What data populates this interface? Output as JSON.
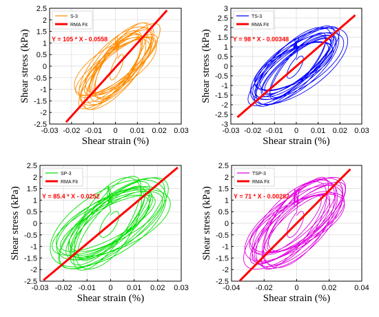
{
  "chart_data": [
    {
      "type": "line",
      "xlabel": "Shear strain (%)",
      "ylabel": "Shear stress (kPa)",
      "xlim": [
        -0.03,
        0.03
      ],
      "ylim": [
        -2.5,
        2.5
      ],
      "xticks": [
        -0.03,
        -0.02,
        -0.01,
        0,
        0.01,
        0.02,
        0.03
      ],
      "yticks": [
        -2.5,
        -2,
        -1.5,
        -1,
        -0.5,
        0,
        0.5,
        1,
        1.5,
        2,
        2.5
      ],
      "xtick_labels": [
        "-0.03",
        "-0.02",
        "-0.01",
        "0",
        "0.01",
        "0.02",
        "0.03"
      ],
      "ytick_labels": [
        "-2.5",
        "-2",
        "-1.5",
        "-1",
        "-0.5",
        "0",
        "0.5",
        "1",
        "1.5",
        "2",
        "2.5"
      ],
      "grid": true,
      "legend": "top-left",
      "annotation": "Y = 105 * X - 0.0558",
      "series": [
        {
          "name": "S-3",
          "color": "#ff8c00",
          "kind": "hysteresis",
          "loop": {
            "center_x": 0.001,
            "center_y": 0.0,
            "x_amplitude": 0.018,
            "y_amplitude": 1.9,
            "phase_lag": 0.7
          }
        },
        {
          "name": "RMA Fit",
          "color": "#ff0000",
          "kind": "fit",
          "slope": 105,
          "intercept": -0.0558,
          "x_range": [
            -0.0225,
            0.0235
          ]
        }
      ]
    },
    {
      "type": "line",
      "xlabel": "Shear strain (%)",
      "ylabel": "Shear stress (kPa)",
      "xlim": [
        -0.03,
        0.03
      ],
      "ylim": [
        -3,
        3
      ],
      "xticks": [
        -0.03,
        -0.02,
        -0.01,
        0,
        0.01,
        0.02,
        0.03
      ],
      "yticks": [
        -3,
        -2.5,
        -2,
        -1.5,
        -1,
        -0.5,
        0,
        0.5,
        1,
        1.5,
        2,
        2.5,
        3
      ],
      "xtick_labels": [
        "-0.03",
        "-0.02",
        "-0.01",
        "0",
        "0.01",
        "0.02",
        "0.03"
      ],
      "ytick_labels": [
        "-3",
        "-2.5",
        "-2",
        "-1.5",
        "-1",
        "-0.5",
        "0",
        "0.5",
        "1",
        "1.5",
        "2",
        "2.5",
        "3"
      ],
      "grid": true,
      "legend": "top-left",
      "annotation": "Y = 98 * X - 0.00348",
      "series": [
        {
          "name": "TS-3",
          "color": "#0000ff",
          "kind": "hysteresis",
          "loop": {
            "center_x": 0.0,
            "center_y": 0.0,
            "x_amplitude": 0.022,
            "y_amplitude": 2.0,
            "phase_lag": 0.7
          }
        },
        {
          "name": "RMA Fit",
          "color": "#ff0000",
          "kind": "fit",
          "slope": 98,
          "intercept": -0.00348,
          "x_range": [
            -0.027,
            0.027
          ]
        }
      ]
    },
    {
      "type": "line",
      "xlabel": "Shear strain (%)",
      "ylabel": "Shear stress (kPa)",
      "xlim": [
        -0.03,
        0.03
      ],
      "ylim": [
        -2.5,
        2.5
      ],
      "xticks": [
        -0.03,
        -0.02,
        -0.01,
        0,
        0.01,
        0.02,
        0.03
      ],
      "yticks": [
        -2.5,
        -2,
        -1.5,
        -1,
        -0.5,
        0,
        0.5,
        1,
        1.5,
        2,
        2.5
      ],
      "xtick_labels": [
        "-0.03",
        "-0.02",
        "-0.01",
        "0",
        "0.01",
        "0.02",
        "0.03"
      ],
      "ytick_labels": [
        "-2.5",
        "-2",
        "-1.5",
        "-1",
        "-0.5",
        "0",
        "0.5",
        "1",
        "1.5",
        "2",
        "2.5"
      ],
      "grid": true,
      "legend": "top-left",
      "annotation": "Y = 85.4 * X - 0.0252",
      "series": [
        {
          "name": "SP-3",
          "color": "#00e000",
          "kind": "hysteresis",
          "loop": {
            "center_x": 0.0,
            "center_y": 0.0,
            "x_amplitude": 0.024,
            "y_amplitude": 1.95,
            "phase_lag": 0.8
          }
        },
        {
          "name": "RMA Fit",
          "color": "#ff0000",
          "kind": "fit",
          "slope": 85.4,
          "intercept": -0.0252,
          "x_range": [
            -0.0285,
            0.0285
          ]
        }
      ]
    },
    {
      "type": "line",
      "xlabel": "Shear strain (%)",
      "ylabel": "Shear stress (kPa)",
      "xlim": [
        -0.04,
        0.04
      ],
      "ylim": [
        -2.5,
        2.5
      ],
      "xticks": [
        -0.04,
        -0.02,
        0,
        0.02,
        0.04
      ],
      "yticks": [
        -2.5,
        -2,
        -1.5,
        -1,
        -0.5,
        0,
        0.5,
        1,
        1.5,
        2,
        2.5
      ],
      "xtick_labels": [
        "-0.04",
        "-0.02",
        "0",
        "0.02",
        "0.04"
      ],
      "ytick_labels": [
        "-2.5",
        "-2",
        "-1.5",
        "-1",
        "-0.5",
        "0",
        "0.5",
        "1",
        "1.5",
        "2",
        "2.5"
      ],
      "grid": true,
      "legend": "top-left",
      "annotation": "Y = 71 * X - 0.00282",
      "series": [
        {
          "name": "TSP-3",
          "color": "#e000e0",
          "kind": "hysteresis",
          "loop": {
            "center_x": 0.0,
            "center_y": 0.0,
            "x_amplitude": 0.03,
            "y_amplitude": 1.95,
            "phase_lag": 0.75
          }
        },
        {
          "name": "RMA Fit",
          "color": "#ff0000",
          "kind": "fit",
          "slope": 71,
          "intercept": -0.00282,
          "x_range": [
            -0.035,
            0.033
          ]
        }
      ]
    }
  ]
}
